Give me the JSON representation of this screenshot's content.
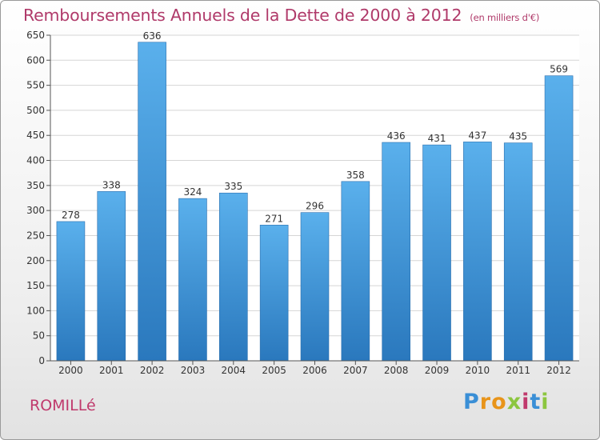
{
  "header": {
    "title": "Remboursements Annuels de la Dette de 2000 à 2012",
    "subtitle": "(en milliers d'€)"
  },
  "footer": {
    "commune": "ROMILLé",
    "logo_letters": [
      "P",
      "r",
      "o",
      "x",
      "i",
      "t",
      "i"
    ],
    "logo_colors": [
      "#3a8fd6",
      "#e8941a",
      "#e8941a",
      "#8cc63f",
      "#c0396c",
      "#3a8fd6",
      "#8cc63f"
    ]
  },
  "colors": {
    "bar_top": "#5ab0ec",
    "bar_bottom": "#2a78bd",
    "title": "#b03a6a"
  },
  "chart_data": {
    "type": "bar",
    "categories": [
      "2000",
      "2001",
      "2002",
      "2003",
      "2004",
      "2005",
      "2006",
      "2007",
      "2008",
      "2009",
      "2010",
      "2011",
      "2012"
    ],
    "values": [
      278,
      338,
      636,
      324,
      335,
      271,
      296,
      358,
      436,
      431,
      437,
      435,
      569
    ],
    "data_labels": [
      "278",
      "338",
      "636",
      "324",
      "335",
      "271",
      "296",
      "358",
      "436",
      "431",
      "437",
      "435",
      "569"
    ],
    "ylim": [
      0,
      650
    ],
    "yticks": [
      0,
      50,
      100,
      150,
      200,
      250,
      300,
      350,
      400,
      450,
      500,
      550,
      600,
      650
    ],
    "ytick_labels": [
      "0",
      "50",
      "100",
      "150",
      "200",
      "250",
      "300",
      "350",
      "400",
      "450",
      "500",
      "550",
      "600",
      "650"
    ],
    "grid": true
  }
}
